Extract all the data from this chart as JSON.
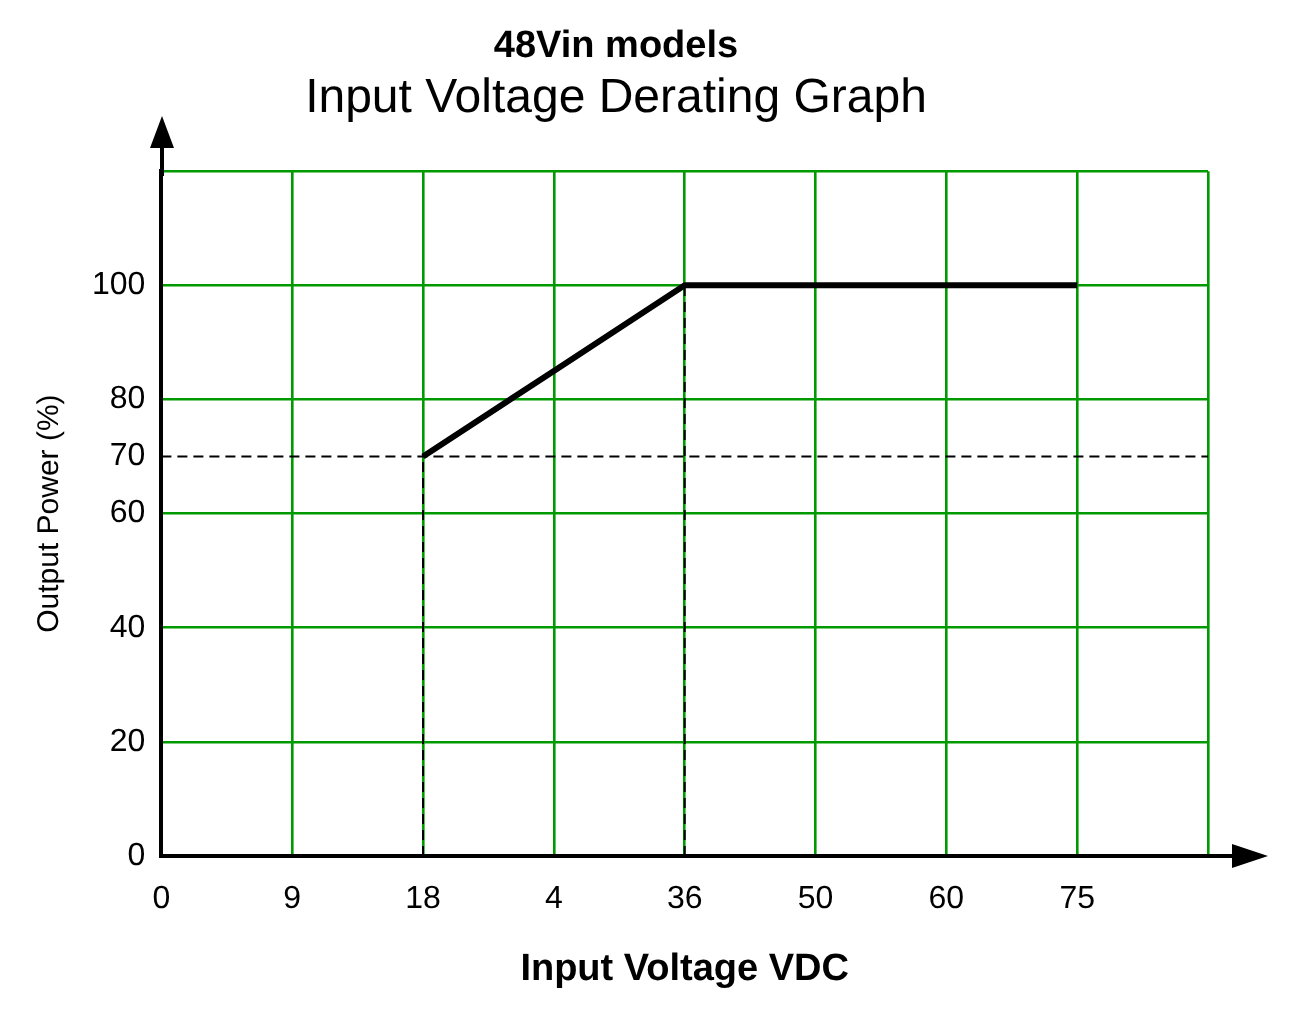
{
  "chart_data": {
    "type": "line",
    "title": "48Vin models",
    "subtitle": "Input Voltage Derating Graph",
    "xlabel": "Input Voltage VDC",
    "ylabel": "Output Power (%)",
    "categories": [
      "0",
      "9",
      "18",
      "4",
      "36",
      "50",
      "60",
      "75",
      null
    ],
    "series": [
      {
        "color": "#000000",
        "values": [
          null,
          null,
          70,
          85,
          100,
          100,
          100,
          100,
          null
        ]
      }
    ],
    "ylim": [
      0,
      120
    ],
    "yticks": [
      0,
      20,
      40,
      60,
      80,
      100,
      {
        "value": 120,
        "label": null
      }
    ],
    "ref_lines": [
      {
        "axis": "y",
        "value": 70,
        "label": "70",
        "color": "#000000",
        "line_style": "dashed"
      },
      {
        "axis": "x",
        "value": "18",
        "color": "#000000",
        "line_style": "dashed"
      },
      {
        "axis": "x",
        "value": "36",
        "color": "#000000",
        "line_style": "dashed"
      }
    ],
    "grid": true,
    "legend": false,
    "marker": "none",
    "line_style": "solid"
  }
}
